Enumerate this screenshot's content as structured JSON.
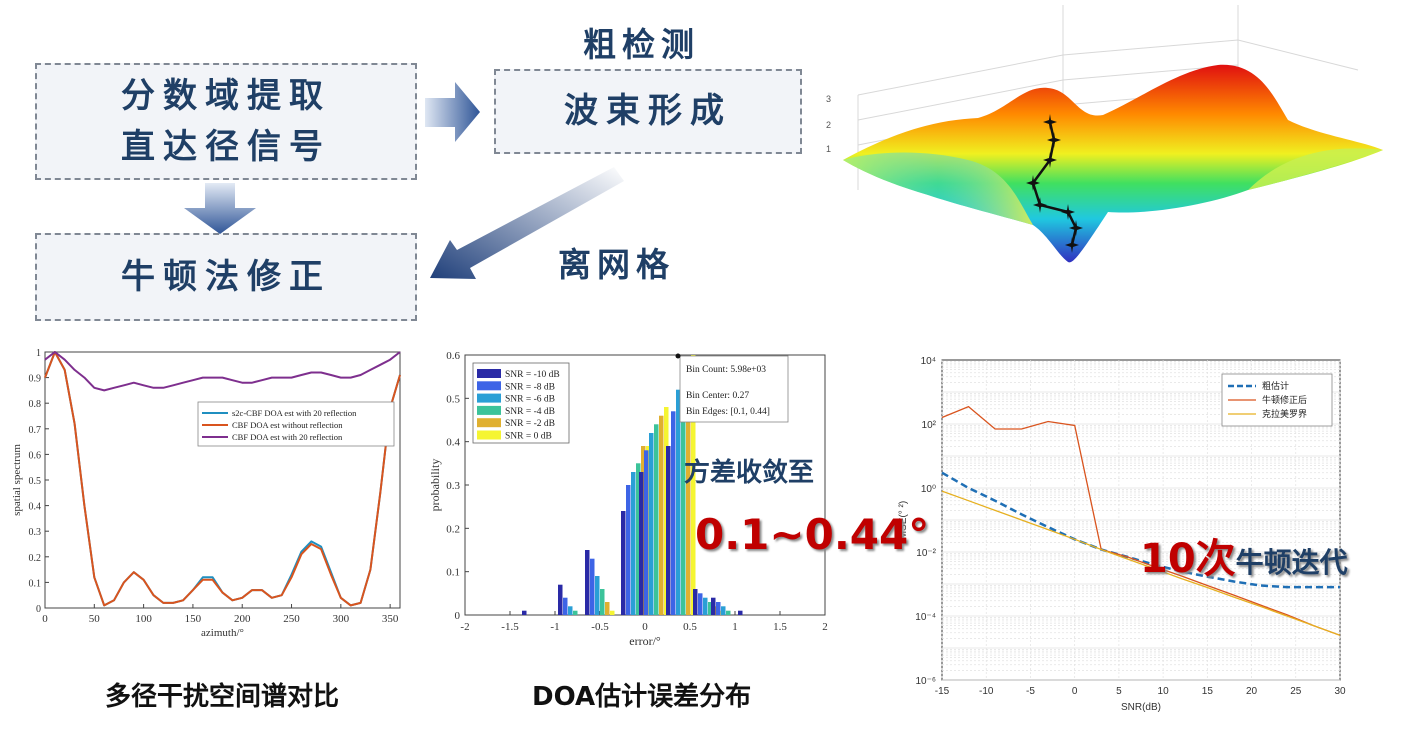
{
  "flow": {
    "box1_line1": "分数域提取",
    "box1_line2": "直达径信号",
    "box2": "波束形成",
    "box3": "牛顿法修正",
    "label_coarse": "粗检测",
    "label_offgrid": "离网格"
  },
  "surface": {
    "z_ticks": [
      "3",
      "2",
      "1"
    ]
  },
  "captions": {
    "left": "多径干扰空间谱对比",
    "middle": "DOA估计误差分布",
    "right_overlay": "10次",
    "right_overlay_suffix": "牛顿迭代",
    "middle_overlay_1": "方差收敛至",
    "middle_overlay_2": "0.1~0.44°"
  },
  "chart_data": [
    {
      "type": "line",
      "xlabel": "azimuth/°",
      "ylabel": "spatial spectrum",
      "xlim": [
        0,
        360
      ],
      "ylim": [
        0,
        1
      ],
      "x_ticks": [
        "0",
        "50",
        "100",
        "150",
        "200",
        "250",
        "300",
        "350"
      ],
      "y_ticks": [
        "0",
        "0.1",
        "0.2",
        "0.3",
        "0.4",
        "0.5",
        "0.6",
        "0.7",
        "0.8",
        "0.9",
        "1"
      ],
      "legend_position": "upper-right",
      "series": [
        {
          "name": "s2c-CBF DOA est with 20 reflection",
          "color": "#1f8fc0",
          "x": [
            0,
            10,
            20,
            30,
            40,
            50,
            60,
            70,
            80,
            90,
            100,
            110,
            120,
            130,
            140,
            150,
            160,
            170,
            180,
            190,
            200,
            210,
            220,
            230,
            240,
            250,
            260,
            270,
            280,
            290,
            300,
            310,
            320,
            330,
            340,
            350,
            360
          ],
          "y": [
            0.9,
            1.0,
            0.93,
            0.72,
            0.4,
            0.12,
            0.01,
            0.03,
            0.1,
            0.14,
            0.11,
            0.05,
            0.02,
            0.02,
            0.03,
            0.07,
            0.12,
            0.12,
            0.06,
            0.03,
            0.04,
            0.07,
            0.07,
            0.04,
            0.05,
            0.13,
            0.22,
            0.26,
            0.24,
            0.14,
            0.04,
            0.01,
            0.02,
            0.15,
            0.45,
            0.78,
            0.91
          ]
        },
        {
          "name": "CBF DOA est without reflection",
          "color": "#d9541e",
          "x": [
            0,
            10,
            20,
            30,
            40,
            50,
            60,
            70,
            80,
            90,
            100,
            110,
            120,
            130,
            140,
            150,
            160,
            170,
            180,
            190,
            200,
            210,
            220,
            230,
            240,
            250,
            260,
            270,
            280,
            290,
            300,
            310,
            320,
            330,
            340,
            350,
            360
          ],
          "y": [
            0.9,
            1.0,
            0.93,
            0.72,
            0.4,
            0.12,
            0.01,
            0.03,
            0.1,
            0.14,
            0.11,
            0.05,
            0.02,
            0.02,
            0.03,
            0.07,
            0.11,
            0.11,
            0.06,
            0.03,
            0.04,
            0.07,
            0.07,
            0.04,
            0.05,
            0.12,
            0.21,
            0.25,
            0.23,
            0.13,
            0.04,
            0.01,
            0.02,
            0.15,
            0.45,
            0.78,
            0.91
          ]
        },
        {
          "name": "CBF DOA est with 20 reflection",
          "color": "#7e2f8e",
          "x": [
            0,
            10,
            20,
            30,
            40,
            50,
            60,
            70,
            80,
            90,
            100,
            110,
            120,
            130,
            140,
            150,
            160,
            170,
            180,
            190,
            200,
            210,
            220,
            230,
            240,
            250,
            260,
            270,
            280,
            290,
            300,
            310,
            320,
            330,
            340,
            350,
            360
          ],
          "y": [
            0.97,
            1.0,
            0.97,
            0.93,
            0.9,
            0.86,
            0.85,
            0.86,
            0.87,
            0.88,
            0.87,
            0.86,
            0.86,
            0.87,
            0.88,
            0.89,
            0.9,
            0.9,
            0.9,
            0.89,
            0.88,
            0.88,
            0.89,
            0.9,
            0.9,
            0.9,
            0.91,
            0.92,
            0.92,
            0.91,
            0.9,
            0.9,
            0.91,
            0.93,
            0.95,
            0.97,
            1.0
          ]
        }
      ]
    },
    {
      "type": "bar",
      "xlabel": "error/°",
      "ylabel": "probability",
      "xlim": [
        -2,
        2
      ],
      "ylim": [
        0,
        0.6
      ],
      "x_ticks": [
        "-2",
        "-1.5",
        "-1",
        "-0.5",
        "0",
        "0.5",
        "1",
        "1.5",
        "2"
      ],
      "y_ticks": [
        "0",
        "0.1",
        "0.2",
        "0.3",
        "0.4",
        "0.5",
        "0.6"
      ],
      "legend_position": "upper-left",
      "bins": [
        -1.2,
        -0.8,
        -0.5,
        -0.1,
        0.1,
        0.4,
        0.7,
        0.9,
        1.2
      ],
      "series": [
        {
          "name": "SNR = -10 dB",
          "color": "#2a2aa6",
          "values": [
            0.01,
            0.07,
            0.15,
            0.24,
            0.33,
            0.39,
            0.06,
            0.04,
            0.01
          ]
        },
        {
          "name": "SNR = -8 dB",
          "color": "#3d64e6",
          "values": [
            0.0,
            0.04,
            0.13,
            0.3,
            0.38,
            0.47,
            0.05,
            0.03,
            0.0
          ]
        },
        {
          "name": "SNR = -6 dB",
          "color": "#2a9fd6",
          "values": [
            0.0,
            0.02,
            0.09,
            0.33,
            0.42,
            0.52,
            0.04,
            0.02,
            0.0
          ]
        },
        {
          "name": "SNR = -4 dB",
          "color": "#3cc39a",
          "values": [
            0.0,
            0.01,
            0.06,
            0.35,
            0.44,
            0.55,
            0.03,
            0.01,
            0.0
          ]
        },
        {
          "name": "SNR = -2 dB",
          "color": "#e0b030",
          "values": [
            0.0,
            0.0,
            0.03,
            0.39,
            0.46,
            0.57,
            0.02,
            0.0,
            0.0
          ]
        },
        {
          "name": "SNR = 0 dB",
          "color": "#f5f532",
          "values": [
            0.0,
            0.0,
            0.01,
            0.39,
            0.48,
            0.6,
            0.01,
            0.0,
            0.0
          ]
        }
      ],
      "datatip": {
        "line1": "Bin Count: 5.98e+03",
        "line2": "Bin Center: 0.27",
        "line3": "Bin Edges: [0.1, 0.44]"
      }
    },
    {
      "type": "line",
      "xlabel": "SNR(dB)",
      "ylabel": "MSE(° ²)",
      "y_scale": "log",
      "xlim": [
        -15,
        30
      ],
      "ylim": [
        1e-06,
        10000
      ],
      "x_ticks": [
        "-15",
        "-10",
        "-5",
        "0",
        "5",
        "10",
        "15",
        "20",
        "25",
        "30"
      ],
      "y_ticks": [
        "10⁴",
        "10²",
        "10⁰",
        "10⁻²",
        "10⁻⁴",
        "10⁻⁶"
      ],
      "legend_position": "upper-right",
      "series": [
        {
          "name": "粗估计",
          "color": "#1f6fb5",
          "dash": true,
          "x": [
            -15,
            -12,
            -9,
            -6,
            -3,
            0,
            3,
            6,
            9,
            12,
            15,
            18,
            21,
            24,
            27,
            30
          ],
          "y": [
            3.0,
            1.0,
            0.4,
            0.15,
            0.06,
            0.025,
            0.012,
            0.007,
            0.004,
            0.0025,
            0.0017,
            0.0012,
            0.0009,
            0.0008,
            0.0008,
            0.0008
          ]
        },
        {
          "name": "牛顿修正后",
          "color": "#d9541e",
          "x": [
            -15,
            -12,
            -9,
            -6,
            -3,
            0,
            3,
            6,
            9,
            12,
            15,
            18,
            21,
            24,
            27,
            30
          ],
          "y": [
            160,
            350,
            70,
            70,
            120,
            90,
            0.012,
            0.007,
            0.0035,
            0.0018,
            0.0009,
            0.00045,
            0.00022,
            0.00011,
            5e-05,
            2.5e-05
          ]
        },
        {
          "name": "克拉美罗界",
          "color": "#e6b020",
          "x": [
            -15,
            -12,
            -9,
            -6,
            -3,
            0,
            3,
            6,
            9,
            12,
            15,
            18,
            21,
            24,
            27,
            30
          ],
          "y": [
            0.8,
            0.4,
            0.2,
            0.1,
            0.05,
            0.025,
            0.012,
            0.006,
            0.003,
            0.0015,
            0.00078,
            0.00039,
            0.0002,
            0.0001,
            5e-05,
            2.5e-05
          ]
        }
      ]
    }
  ]
}
